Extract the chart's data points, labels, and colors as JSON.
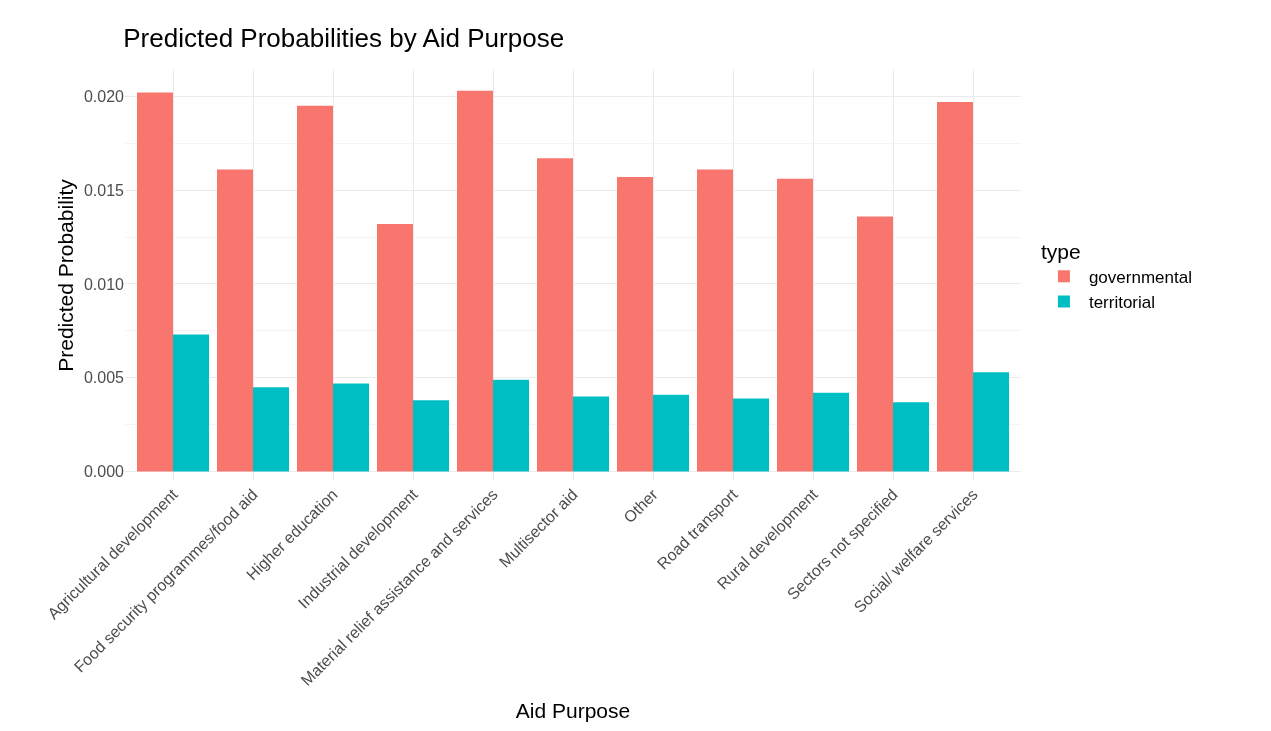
{
  "chart_data": {
    "type": "bar",
    "title": "Predicted Probabilities by Aid Purpose",
    "xlabel": "Aid Purpose",
    "ylabel": "Predicted Probability",
    "legend_title": "type",
    "categories": [
      "Agricultural development",
      "Food security programmes/food aid",
      "Higher education",
      "Industrial development",
      "Material relief assistance and services",
      "Multisector aid",
      "Other",
      "Road transport",
      "Rural development",
      "Sectors not specified",
      "Social/ welfare services"
    ],
    "series": [
      {
        "name": "governmental",
        "color": "#f8766d",
        "values": [
          0.0202,
          0.0161,
          0.0195,
          0.0132,
          0.0203,
          0.0167,
          0.0157,
          0.0161,
          0.0156,
          0.0136,
          0.0197
        ]
      },
      {
        "name": "territorial",
        "color": "#00bfc4",
        "values": [
          0.0073,
          0.0045,
          0.0047,
          0.0038,
          0.0049,
          0.004,
          0.0041,
          0.0039,
          0.0042,
          0.0037,
          0.0053
        ]
      }
    ],
    "ylim": [
      -0.0005,
      0.0214
    ],
    "yticks": [
      {
        "value": 0,
        "label": "0.000"
      },
      {
        "value": 0.005,
        "label": "0.005"
      },
      {
        "value": 0.01,
        "label": "0.010"
      },
      {
        "value": 0.015,
        "label": "0.015"
      },
      {
        "value": 0.02,
        "label": "0.020"
      }
    ],
    "grid": true,
    "legend": "right"
  }
}
